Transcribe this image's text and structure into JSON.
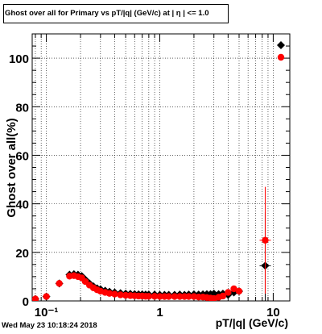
{
  "chart_data": {
    "type": "scatter",
    "title": "Ghost over all for Primary vs pT/|q| (GeV/c) at | η | <= 1.0",
    "xlabel": "pT/|q| (GeV/c)",
    "ylabel": "Ghost over all(%)",
    "x_scale": "log",
    "xlim": [
      0.075,
      14
    ],
    "ylim": [
      0,
      110
    ],
    "x_ticks": [
      "10⁻¹",
      "1",
      "10"
    ],
    "y_ticks": [
      "0",
      "20",
      "40",
      "60",
      "80",
      "100"
    ],
    "grid": true,
    "series": [
      {
        "marker": "diamond",
        "color": "#000000",
        "points": [
          [
            0.08,
            0.8
          ],
          [
            0.1,
            1.8
          ],
          [
            0.13,
            7.2
          ],
          [
            0.16,
            10.8
          ],
          [
            0.175,
            11.0
          ],
          [
            0.19,
            10.8
          ],
          [
            0.205,
            10.2
          ],
          [
            0.22,
            8.8
          ],
          [
            0.24,
            7.2
          ],
          [
            0.26,
            6.0
          ],
          [
            0.28,
            5.2
          ],
          [
            0.3,
            4.8
          ],
          [
            0.33,
            4.2
          ],
          [
            0.36,
            3.8
          ],
          [
            0.4,
            3.5
          ],
          [
            0.45,
            3.2
          ],
          [
            0.5,
            3.0
          ],
          [
            0.55,
            2.9
          ],
          [
            0.6,
            2.8
          ],
          [
            0.65,
            2.7
          ],
          [
            0.7,
            2.7
          ],
          [
            0.75,
            2.6
          ],
          [
            0.8,
            2.6
          ],
          [
            0.9,
            2.6
          ],
          [
            1.0,
            2.5
          ],
          [
            1.1,
            2.5
          ],
          [
            1.2,
            2.5
          ],
          [
            1.35,
            2.5
          ],
          [
            1.5,
            2.6
          ],
          [
            1.65,
            2.5
          ],
          [
            1.8,
            2.6
          ],
          [
            2.0,
            2.7
          ],
          [
            2.2,
            2.6
          ],
          [
            2.4,
            2.7
          ],
          [
            2.6,
            2.8
          ],
          [
            2.8,
            2.8
          ],
          [
            3.0,
            3.0
          ],
          [
            3.3,
            2.8
          ],
          [
            3.6,
            3.0
          ],
          [
            4.0,
            2.5
          ],
          [
            4.5,
            3.5
          ],
          [
            5.0,
            4.0
          ],
          [
            8.5,
            14.5
          ]
        ],
        "errors": [
          0,
          0,
          0,
          0,
          0,
          0,
          0,
          0,
          0,
          0,
          0,
          0,
          0,
          0,
          0,
          0,
          0,
          0,
          0,
          0,
          0,
          0,
          0,
          0,
          0,
          0,
          0,
          0,
          0,
          0,
          0,
          0,
          0,
          0,
          0,
          0,
          0,
          0,
          0,
          0,
          0,
          0,
          22
        ]
      },
      {
        "marker": "circle",
        "color": "#ff0000",
        "points": [
          [
            0.08,
            0.8
          ],
          [
            0.1,
            1.8
          ],
          [
            0.13,
            7.2
          ],
          [
            0.16,
            10.2
          ],
          [
            0.175,
            10.4
          ],
          [
            0.19,
            10.0
          ],
          [
            0.205,
            9.5
          ],
          [
            0.22,
            8.0
          ],
          [
            0.24,
            6.5
          ],
          [
            0.26,
            5.4
          ],
          [
            0.28,
            4.6
          ],
          [
            0.3,
            4.0
          ],
          [
            0.33,
            3.5
          ],
          [
            0.36,
            3.1
          ],
          [
            0.4,
            2.8
          ],
          [
            0.45,
            2.5
          ],
          [
            0.5,
            2.3
          ],
          [
            0.55,
            2.2
          ],
          [
            0.6,
            2.1
          ],
          [
            0.65,
            2.0
          ],
          [
            0.7,
            2.0
          ],
          [
            0.75,
            1.9
          ],
          [
            0.8,
            1.9
          ],
          [
            0.9,
            1.9
          ],
          [
            1.0,
            1.8
          ],
          [
            1.1,
            1.8
          ],
          [
            1.2,
            1.8
          ],
          [
            1.35,
            1.8
          ],
          [
            1.5,
            1.8
          ],
          [
            1.65,
            1.8
          ],
          [
            1.8,
            1.8
          ],
          [
            2.0,
            1.8
          ],
          [
            2.2,
            1.6
          ],
          [
            2.4,
            1.6
          ],
          [
            2.6,
            1.4
          ],
          [
            2.8,
            1.2
          ],
          [
            3.0,
            1.0
          ],
          [
            3.3,
            1.5
          ],
          [
            3.6,
            2.0
          ],
          [
            4.0,
            3.5
          ],
          [
            4.5,
            5.0
          ],
          [
            5.0,
            4.0
          ],
          [
            8.5,
            25.0
          ]
        ],
        "errors": [
          0,
          0,
          0,
          0,
          0,
          0,
          0,
          0,
          0,
          0,
          0,
          0,
          0,
          0,
          0,
          0,
          0,
          0,
          0,
          0,
          0,
          0,
          0,
          0,
          0,
          0,
          0,
          0,
          0,
          0,
          0,
          0,
          0,
          0,
          0,
          0,
          0,
          0,
          0,
          0,
          0,
          0,
          22
        ]
      }
    ]
  },
  "timestamp": "Wed May 23 10:18:24 2018"
}
